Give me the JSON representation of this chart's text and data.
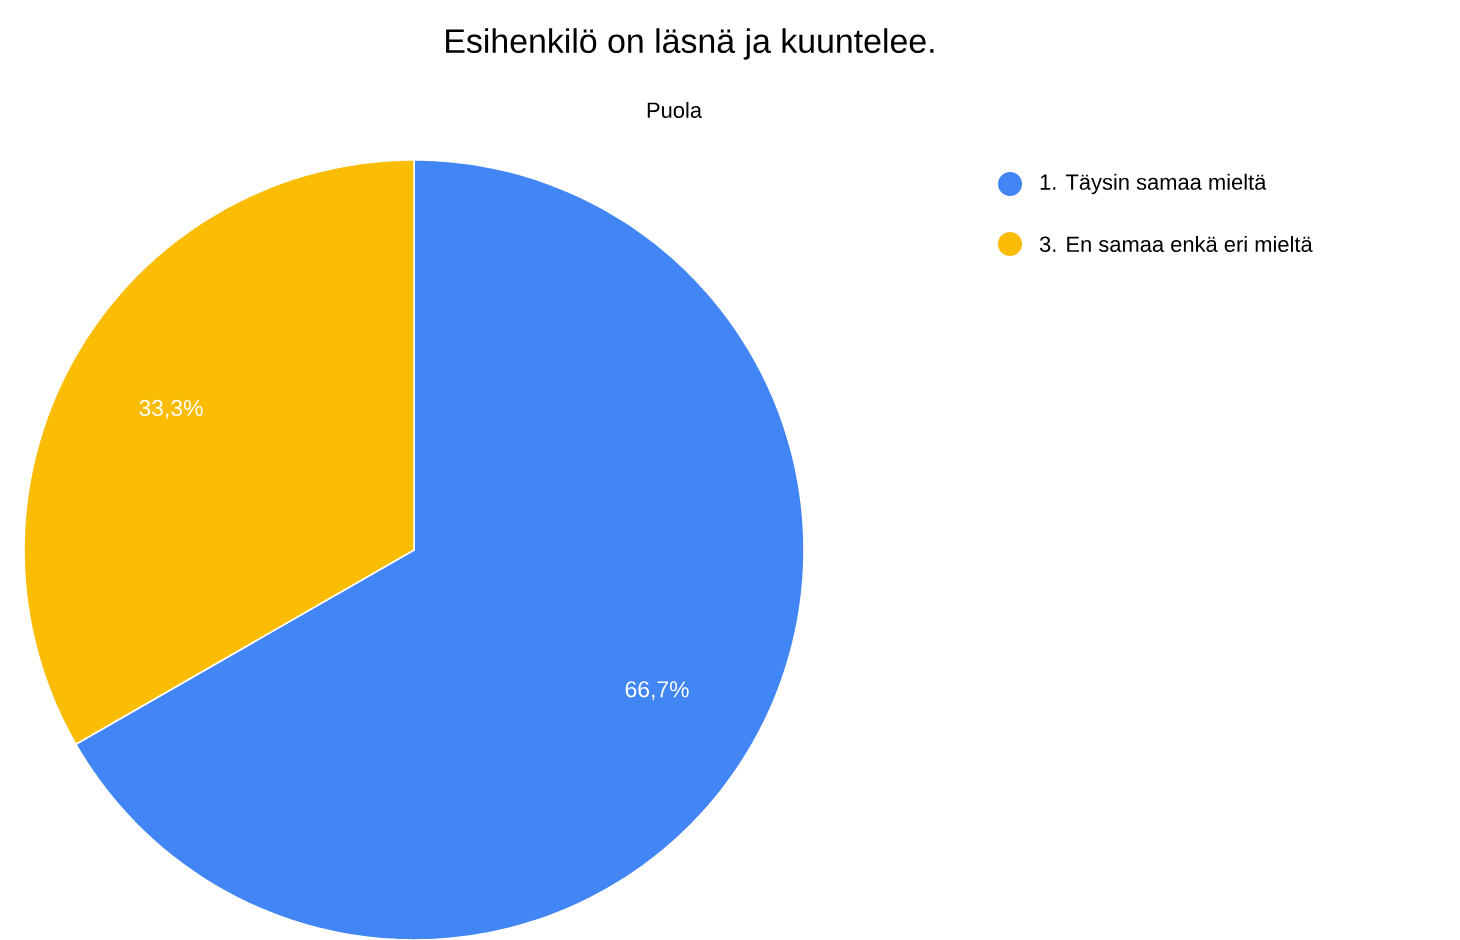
{
  "chart_data": {
    "type": "pie",
    "title": "Esihenkilö on läsnä ja kuuntelee.",
    "subtitle": "Puola",
    "categories": [
      "1. Täysin samaa mieltä",
      "3. En samaa enkä eri mieltä"
    ],
    "values": [
      66.7,
      33.3
    ],
    "colors": [
      "#4285f4",
      "#fbbc04"
    ],
    "value_labels": [
      "66,7%",
      "33,3%"
    ],
    "legend": "right"
  }
}
